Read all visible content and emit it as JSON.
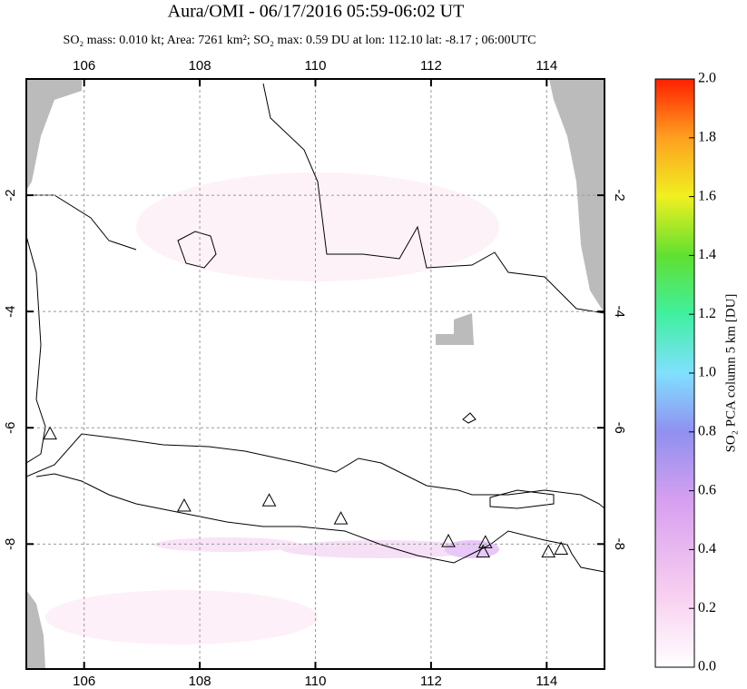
{
  "chart_data": {
    "type": "map",
    "title": "Aura/OMI - 06/17/2016 05:59-06:02 UT",
    "subtitle": "SO₂ mass: 0.010 kt; Area: 7261 km²; SO₂ max: 0.59 DU at lon: 112.10 lat: -8.17 ; 06:00UTC",
    "xlim": [
      105,
      115
    ],
    "ylim": [
      -10.15,
      0
    ],
    "xticks": [
      106,
      108,
      110,
      112,
      114
    ],
    "yticks": [
      -2,
      -4,
      -6,
      -8
    ],
    "grid": true,
    "volcanoes": {
      "lon": [
        105.41,
        107.73,
        109.2,
        110.44,
        112.3,
        112.94,
        112.9,
        114.03,
        114.25
      ],
      "lat": [
        -6.1,
        -7.34,
        -7.25,
        -7.56,
        -7.95,
        -7.97,
        -8.13,
        -8.13,
        -8.08
      ]
    },
    "colorbar": {
      "label": "SO₂ PCA column 5 km [DU]",
      "lim": [
        0,
        2
      ],
      "ticks": [
        {
          "value": 0,
          "label": "0.0"
        },
        {
          "value": 0.2,
          "label": "0.2"
        },
        {
          "value": 0.4,
          "label": "0.4"
        },
        {
          "value": 0.6,
          "label": "0.6"
        },
        {
          "value": 0.8,
          "label": "0.8"
        },
        {
          "value": 1,
          "label": "1.0"
        },
        {
          "value": 1.2,
          "label": "1.2"
        },
        {
          "value": 1.4,
          "label": "1.4"
        },
        {
          "value": 1.6,
          "label": "1.6"
        },
        {
          "value": 1.8,
          "label": "1.8"
        },
        {
          "value": 2,
          "label": "2.0"
        }
      ]
    }
  }
}
